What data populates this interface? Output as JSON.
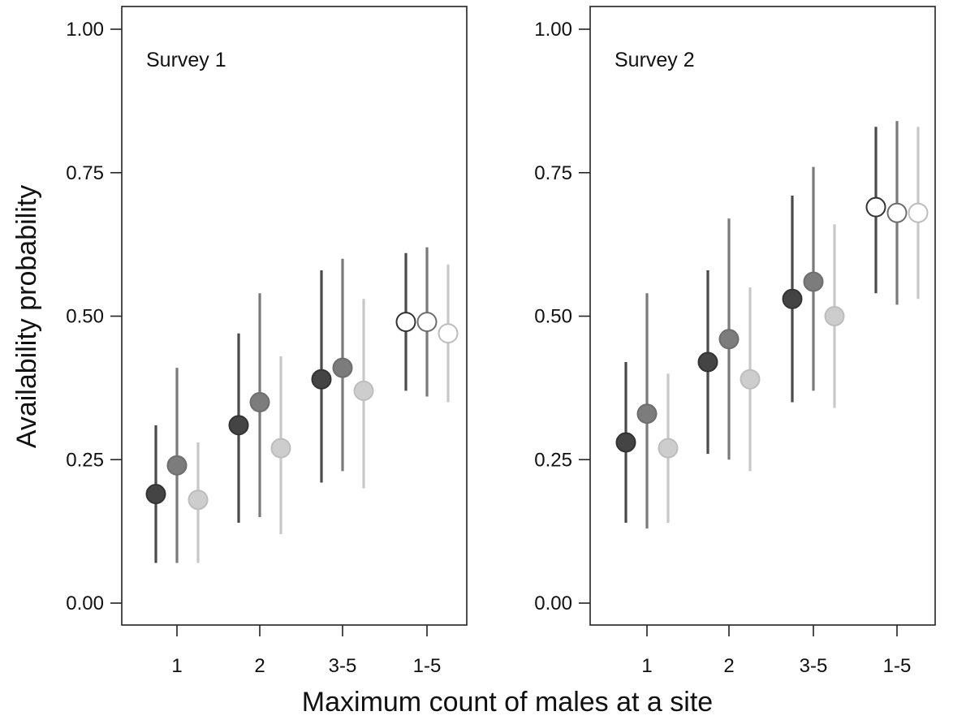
{
  "chart_data": {
    "type": "scatter",
    "ylabel": "Availability probability",
    "xlabel": "Maximum count of males at a site",
    "ylim": [
      0,
      1
    ],
    "yticks": [
      "0.00",
      "0.25",
      "0.50",
      "0.75",
      "1.00"
    ],
    "categories": [
      "1",
      "2",
      "3-5",
      "1-5"
    ],
    "grid": false,
    "legend": "none",
    "panels": [
      {
        "label": "Survey 1",
        "groups": [
          {
            "category": "1",
            "points": [
              {
                "est": 0.19,
                "lo": 0.07,
                "hi": 0.31,
                "fill": "#444444",
                "stroke": "#333333",
                "bar": "#4a4a4a"
              },
              {
                "est": 0.24,
                "lo": 0.07,
                "hi": 0.41,
                "fill": "#7c7c7c",
                "stroke": "#6e6e6e",
                "bar": "#7a7a7a"
              },
              {
                "est": 0.18,
                "lo": 0.07,
                "hi": 0.28,
                "fill": "#cdcdcd",
                "stroke": "#bdbdbd",
                "bar": "#c8c8c8"
              }
            ]
          },
          {
            "category": "2",
            "points": [
              {
                "est": 0.31,
                "lo": 0.14,
                "hi": 0.47,
                "fill": "#444444",
                "stroke": "#333333",
                "bar": "#4a4a4a"
              },
              {
                "est": 0.35,
                "lo": 0.15,
                "hi": 0.54,
                "fill": "#7c7c7c",
                "stroke": "#6e6e6e",
                "bar": "#7a7a7a"
              },
              {
                "est": 0.27,
                "lo": 0.12,
                "hi": 0.43,
                "fill": "#cdcdcd",
                "stroke": "#bdbdbd",
                "bar": "#c8c8c8"
              }
            ]
          },
          {
            "category": "3-5",
            "points": [
              {
                "est": 0.39,
                "lo": 0.21,
                "hi": 0.58,
                "fill": "#444444",
                "stroke": "#333333",
                "bar": "#4a4a4a"
              },
              {
                "est": 0.41,
                "lo": 0.23,
                "hi": 0.6,
                "fill": "#7c7c7c",
                "stroke": "#6e6e6e",
                "bar": "#7a7a7a"
              },
              {
                "est": 0.37,
                "lo": 0.2,
                "hi": 0.53,
                "fill": "#cdcdcd",
                "stroke": "#bdbdbd",
                "bar": "#c8c8c8"
              }
            ]
          },
          {
            "category": "1-5",
            "points": [
              {
                "est": 0.49,
                "lo": 0.37,
                "hi": 0.61,
                "fill": "#ffffff",
                "stroke": "#333333",
                "bar": "#4a4a4a"
              },
              {
                "est": 0.49,
                "lo": 0.36,
                "hi": 0.62,
                "fill": "#ffffff",
                "stroke": "#6e6e6e",
                "bar": "#7a7a7a"
              },
              {
                "est": 0.47,
                "lo": 0.35,
                "hi": 0.59,
                "fill": "#ffffff",
                "stroke": "#bdbdbd",
                "bar": "#c8c8c8"
              }
            ]
          }
        ]
      },
      {
        "label": "Survey 2",
        "groups": [
          {
            "category": "1",
            "points": [
              {
                "est": 0.28,
                "lo": 0.14,
                "hi": 0.42,
                "fill": "#444444",
                "stroke": "#333333",
                "bar": "#4a4a4a"
              },
              {
                "est": 0.33,
                "lo": 0.13,
                "hi": 0.54,
                "fill": "#7c7c7c",
                "stroke": "#6e6e6e",
                "bar": "#7a7a7a"
              },
              {
                "est": 0.27,
                "lo": 0.14,
                "hi": 0.4,
                "fill": "#cdcdcd",
                "stroke": "#bdbdbd",
                "bar": "#c8c8c8"
              }
            ]
          },
          {
            "category": "2",
            "points": [
              {
                "est": 0.42,
                "lo": 0.26,
                "hi": 0.58,
                "fill": "#444444",
                "stroke": "#333333",
                "bar": "#4a4a4a"
              },
              {
                "est": 0.46,
                "lo": 0.25,
                "hi": 0.67,
                "fill": "#7c7c7c",
                "stroke": "#6e6e6e",
                "bar": "#7a7a7a"
              },
              {
                "est": 0.39,
                "lo": 0.23,
                "hi": 0.55,
                "fill": "#cdcdcd",
                "stroke": "#bdbdbd",
                "bar": "#c8c8c8"
              }
            ]
          },
          {
            "category": "3-5",
            "points": [
              {
                "est": 0.53,
                "lo": 0.35,
                "hi": 0.71,
                "fill": "#444444",
                "stroke": "#333333",
                "bar": "#4a4a4a"
              },
              {
                "est": 0.56,
                "lo": 0.37,
                "hi": 0.76,
                "fill": "#7c7c7c",
                "stroke": "#6e6e6e",
                "bar": "#7a7a7a"
              },
              {
                "est": 0.5,
                "lo": 0.34,
                "hi": 0.66,
                "fill": "#cdcdcd",
                "stroke": "#bdbdbd",
                "bar": "#c8c8c8"
              }
            ]
          },
          {
            "category": "1-5",
            "points": [
              {
                "est": 0.69,
                "lo": 0.54,
                "hi": 0.83,
                "fill": "#ffffff",
                "stroke": "#333333",
                "bar": "#4a4a4a"
              },
              {
                "est": 0.68,
                "lo": 0.52,
                "hi": 0.84,
                "fill": "#ffffff",
                "stroke": "#6e6e6e",
                "bar": "#7a7a7a"
              },
              {
                "est": 0.68,
                "lo": 0.53,
                "hi": 0.83,
                "fill": "#ffffff",
                "stroke": "#bdbdbd",
                "bar": "#c8c8c8"
              }
            ]
          }
        ]
      }
    ]
  }
}
